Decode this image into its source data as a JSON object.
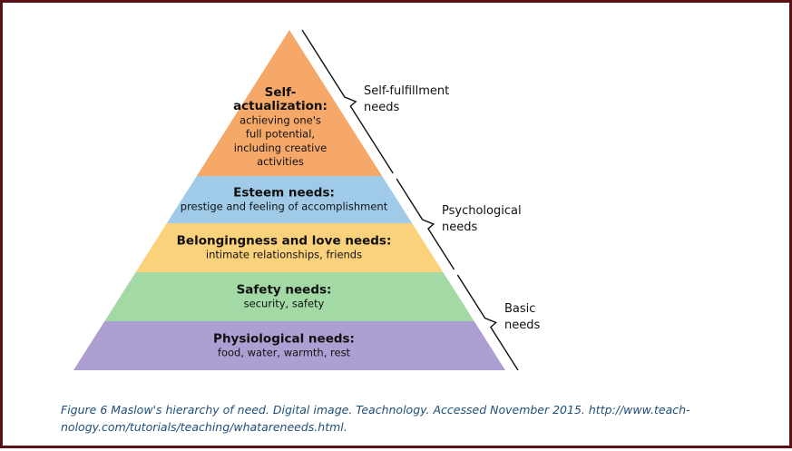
{
  "pyramid": {
    "tiers": [
      {
        "title_lines": [
          "Self-",
          "actualization:"
        ],
        "desc_lines": [
          "achieving one's",
          "full potential,",
          "including creative",
          "activities"
        ],
        "color": "#f5a868"
      },
      {
        "title_lines": [
          "Esteem needs:"
        ],
        "desc_lines": [
          "prestige and feeling of accomplishment"
        ],
        "color": "#9fcbe8"
      },
      {
        "title_lines": [
          "Belongingness and love needs:"
        ],
        "desc_lines": [
          "intimate relationships, friends"
        ],
        "color": "#fbd27c"
      },
      {
        "title_lines": [
          "Safety needs:"
        ],
        "desc_lines": [
          "security, safety"
        ],
        "color": "#a3d9a5"
      },
      {
        "title_lines": [
          "Physiological needs:"
        ],
        "desc_lines": [
          "food, water, warmth, rest"
        ],
        "color": "#ae9fd2"
      }
    ],
    "groups": [
      {
        "label_lines": [
          "Self-fulfillment",
          "needs"
        ]
      },
      {
        "label_lines": [
          "Psychological",
          "needs"
        ]
      },
      {
        "label_lines": [
          "Basic",
          "needs"
        ]
      }
    ]
  },
  "caption": "Figure 6 Maslow's hierarchy of need. Digital image. Teachnology. Accessed November 2015. http://www.teach-nology.com/tutorials/teaching/whatareneeds.html.",
  "colors": {
    "frame": "#5a1014",
    "caption_text": "#1f4e79",
    "brace": "#111111"
  }
}
